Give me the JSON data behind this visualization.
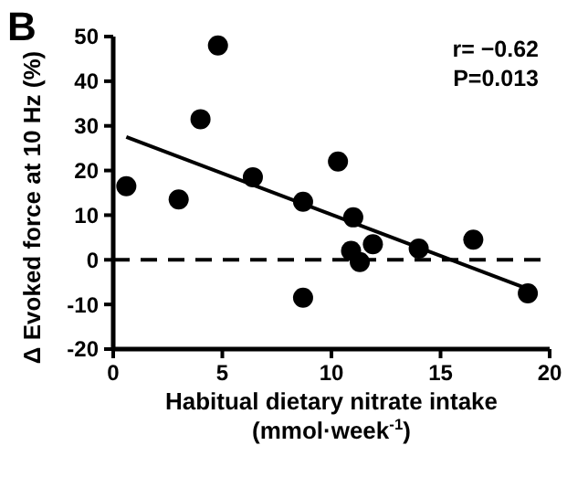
{
  "chart_data": {
    "type": "scatter",
    "xlabel": "Habitual dietary nitrate intake\n(mmol·week$^{-1}$)",
    "ylabel": "Δ Evoked force at 10 Hz (%)",
    "annotations": [
      "B",
      "r= −0.62",
      "P=0.013"
    ],
    "xlim": [
      0,
      20
    ],
    "xticks": [
      0,
      5,
      10,
      15,
      20
    ],
    "ylim": [
      -20,
      50
    ],
    "yticks": [
      -20,
      -10,
      0,
      10,
      20,
      30,
      40,
      50
    ],
    "marker": "circle",
    "grid": false,
    "ref_lines": [
      {
        "axis": "y",
        "value": 0,
        "line_style": "dashed",
        "color": "#000000"
      }
    ],
    "series": [
      {
        "color": "#000000",
        "x": [
          0.6,
          3,
          4,
          4.8,
          6.4,
          8.7,
          8.7,
          10.3,
          11,
          10.9,
          11.3,
          11.9,
          14,
          16.5,
          19
        ],
        "values": [
          16.5,
          13.5,
          31.5,
          48,
          18.5,
          13,
          -8.5,
          22,
          9.5,
          2,
          -0.5,
          3.5,
          2.5,
          4.5,
          -7.5
        ]
      },
      {
        "type": "line",
        "color": "#000000",
        "x": [
          0.6,
          19
        ],
        "values": [
          27.5,
          -6.5
        ],
        "marker": "none"
      }
    ]
  }
}
